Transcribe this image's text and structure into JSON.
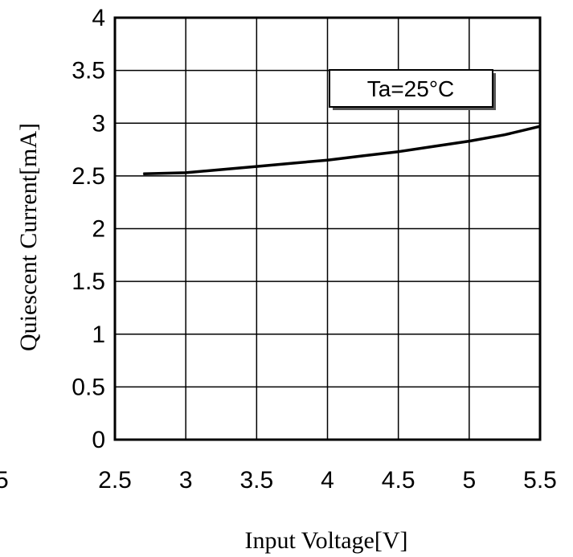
{
  "chart_data": {
    "type": "line",
    "xlabel": "Input Voltage[V]",
    "ylabel": "Quiescent Current[mA]",
    "xlim": [
      2.5,
      5.5
    ],
    "ylim": [
      0,
      4
    ],
    "x_ticks": [
      "2.5",
      "3",
      "3.5",
      "4",
      "4.5",
      "5",
      "5.5"
    ],
    "y_ticks": [
      "0",
      "0.5",
      "1",
      "1.5",
      "2",
      "2.5",
      "3",
      "3.5",
      "4"
    ],
    "clipped_left_label": "5",
    "grid": true,
    "annotation": "Ta=25°C",
    "series": [
      {
        "color": "#000000",
        "x": [
          2.7,
          3.0,
          3.25,
          3.5,
          3.75,
          4.0,
          4.25,
          4.5,
          4.75,
          5.0,
          5.25,
          5.5
        ],
        "y": [
          2.52,
          2.53,
          2.56,
          2.59,
          2.62,
          2.65,
          2.69,
          2.73,
          2.78,
          2.83,
          2.89,
          2.97
        ]
      }
    ]
  }
}
